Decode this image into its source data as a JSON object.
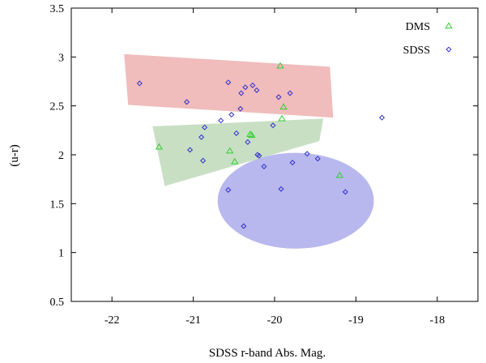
{
  "chart_data": {
    "type": "scatter",
    "title": "",
    "xlabel": "SDSS r-band Abs. Mag.",
    "ylabel": "(u-r)",
    "xlim": [
      -22.5,
      -17.5
    ],
    "ylim": [
      0.5,
      3.5
    ],
    "x_ticks": [
      -22,
      -21,
      -20,
      -19,
      -18
    ],
    "y_ticks": [
      0.5,
      1,
      1.5,
      2,
      2.5,
      3,
      3.5
    ],
    "x_tick_labels": [
      "-22",
      "-21",
      "-20",
      "-19",
      "-18"
    ],
    "y_tick_labels": [
      "0.5",
      "1",
      "1.5",
      "2",
      "2.5",
      "3",
      "3.5"
    ],
    "grid": false,
    "legend_position": "top-right",
    "regions": [
      {
        "name": "red-region",
        "color": "#f0bcbc",
        "shape": "polygon",
        "points": [
          [
            -21.85,
            3.03
          ],
          [
            -19.32,
            2.9
          ],
          [
            -19.28,
            2.38
          ],
          [
            -21.8,
            2.51
          ]
        ]
      },
      {
        "name": "green-region",
        "color": "#c8dfc4",
        "shape": "polygon",
        "points": [
          [
            -21.5,
            2.29
          ],
          [
            -19.4,
            2.37
          ],
          [
            -19.45,
            2.14
          ],
          [
            -21.35,
            1.68
          ]
        ]
      },
      {
        "name": "blue-region",
        "color": "#b8b8ee",
        "shape": "ellipse",
        "center": [
          -19.74,
          1.53
        ],
        "radius_x": 0.96,
        "radius_y": 0.49
      }
    ],
    "series": [
      {
        "name": "DMS",
        "marker": "triangle",
        "color": "#33cc33",
        "points": [
          [
            -21.42,
            2.08
          ],
          [
            -20.55,
            2.04
          ],
          [
            -20.49,
            1.93
          ],
          [
            -20.3,
            2.21
          ],
          [
            -20.28,
            2.2
          ],
          [
            -19.93,
            2.91
          ],
          [
            -19.91,
            2.37
          ],
          [
            -19.89,
            2.49
          ],
          [
            -19.2,
            1.79
          ]
        ]
      },
      {
        "name": "SDSS",
        "marker": "diamond",
        "color": "#3030cc",
        "points": [
          [
            -21.66,
            2.73
          ],
          [
            -21.08,
            2.54
          ],
          [
            -21.04,
            2.05
          ],
          [
            -20.9,
            2.18
          ],
          [
            -20.88,
            1.94
          ],
          [
            -20.86,
            2.28
          ],
          [
            -20.66,
            2.35
          ],
          [
            -20.57,
            2.74
          ],
          [
            -20.53,
            2.41
          ],
          [
            -20.47,
            2.22
          ],
          [
            -20.42,
            2.47
          ],
          [
            -20.41,
            2.63
          ],
          [
            -20.36,
            2.69
          ],
          [
            -20.33,
            2.13
          ],
          [
            -20.27,
            2.71
          ],
          [
            -20.22,
            2.66
          ],
          [
            -20.21,
            2.0
          ],
          [
            -20.19,
            1.99
          ],
          [
            -20.13,
            1.88
          ],
          [
            -20.02,
            2.3
          ],
          [
            -19.95,
            2.59
          ],
          [
            -19.92,
            1.65
          ],
          [
            -19.81,
            2.63
          ],
          [
            -19.78,
            1.92
          ],
          [
            -19.6,
            2.01
          ],
          [
            -19.47,
            1.96
          ],
          [
            -19.13,
            1.62
          ],
          [
            -18.68,
            2.38
          ],
          [
            -20.57,
            1.64
          ],
          [
            -20.38,
            1.27
          ]
        ]
      }
    ]
  }
}
